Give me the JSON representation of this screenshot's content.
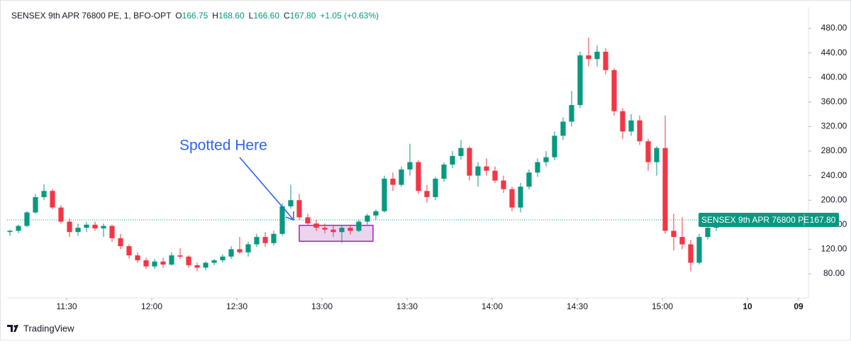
{
  "chart_data": {
    "type": "candlestick",
    "legend": {
      "symbol": "SENSEX 9th APR 76800 PE, 1, BFO-OPT",
      "items": [
        {
          "key": "O",
          "text": "166.75"
        },
        {
          "key": "H",
          "text": "168.60"
        },
        {
          "key": "L",
          "text": "166.60"
        },
        {
          "key": "C",
          "text": "167.80"
        }
      ],
      "change": "+1.05 (+0.63%)"
    },
    "x": [
      670,
      673,
      676,
      679,
      682,
      685,
      688,
      691,
      694,
      697,
      700,
      703,
      706,
      709,
      712,
      715,
      718,
      721,
      724,
      727,
      730,
      733,
      736,
      739,
      742,
      745,
      748,
      751,
      754,
      757,
      760,
      763,
      766,
      769,
      772,
      775,
      778,
      781,
      784,
      787,
      790,
      793,
      796,
      799,
      802,
      805,
      808,
      811,
      814,
      817,
      820,
      823,
      826,
      829,
      832,
      835,
      838,
      841,
      844,
      847,
      850,
      853,
      856,
      859,
      862,
      865,
      868,
      871,
      874,
      877,
      880,
      883,
      886,
      889,
      892,
      895,
      898,
      901,
      904,
      907,
      910,
      913,
      916,
      919,
      922
    ],
    "open": [
      148,
      150,
      158,
      180,
      205,
      215,
      188,
      165,
      148,
      155,
      160,
      154,
      158,
      138,
      125,
      110,
      102,
      92,
      100,
      95,
      110,
      108,
      94,
      90,
      98,
      102,
      108,
      120,
      115,
      128,
      140,
      130,
      145,
      190,
      200,
      172,
      162,
      155,
      152,
      148,
      155,
      150,
      165,
      175,
      182,
      235,
      225,
      250,
      262,
      215,
      205,
      235,
      258,
      272,
      285,
      240,
      255,
      248,
      232,
      218,
      188,
      222,
      245,
      262,
      270,
      305,
      328,
      355,
      436,
      430,
      442,
      412,
      345,
      312,
      330,
      296,
      262,
      285,
      150,
      140,
      128,
      98,
      140,
      155,
      166.75
    ],
    "high": [
      152,
      160,
      182,
      210,
      226,
      218,
      192,
      170,
      162,
      164,
      165,
      162,
      160,
      145,
      128,
      115,
      106,
      104,
      106,
      115,
      122,
      110,
      98,
      100,
      104,
      112,
      125,
      140,
      132,
      145,
      148,
      150,
      195,
      225,
      210,
      178,
      168,
      162,
      160,
      158,
      160,
      168,
      178,
      185,
      240,
      245,
      255,
      292,
      265,
      225,
      238,
      262,
      280,
      298,
      288,
      262,
      268,
      255,
      240,
      222,
      228,
      250,
      268,
      280,
      312,
      335,
      378,
      442,
      465,
      452,
      448,
      415,
      350,
      340,
      338,
      300,
      288,
      338,
      178,
      172,
      135,
      145,
      160,
      166,
      168.6
    ],
    "low": [
      142,
      146,
      156,
      178,
      200,
      185,
      162,
      140,
      142,
      148,
      150,
      140,
      132,
      120,
      105,
      98,
      88,
      88,
      90,
      93,
      104,
      90,
      84,
      86,
      94,
      98,
      104,
      112,
      108,
      124,
      124,
      126,
      142,
      186,
      168,
      158,
      150,
      146,
      140,
      130,
      144,
      148,
      160,
      168,
      180,
      215,
      222,
      240,
      210,
      196,
      200,
      230,
      252,
      266,
      232,
      222,
      240,
      228,
      212,
      182,
      180,
      218,
      238,
      255,
      265,
      298,
      320,
      350,
      418,
      418,
      405,
      338,
      300,
      305,
      290,
      248,
      240,
      145,
      118,
      120,
      84,
      95,
      136,
      150,
      166.6
    ],
    "close": [
      150,
      158,
      180,
      205,
      215,
      188,
      165,
      148,
      155,
      160,
      154,
      158,
      138,
      125,
      110,
      102,
      92,
      100,
      95,
      110,
      108,
      94,
      90,
      98,
      102,
      108,
      120,
      115,
      128,
      140,
      130,
      145,
      190,
      200,
      172,
      162,
      155,
      152,
      148,
      155,
      150,
      165,
      175,
      182,
      235,
      225,
      250,
      262,
      215,
      205,
      235,
      258,
      272,
      285,
      240,
      255,
      248,
      232,
      218,
      188,
      222,
      245,
      262,
      270,
      305,
      328,
      355,
      436,
      430,
      442,
      412,
      345,
      312,
      330,
      296,
      262,
      285,
      150,
      140,
      128,
      98,
      140,
      155,
      163,
      167.8
    ],
    "up_color": "#089981",
    "down_color": "#f23645",
    "xlim": [
      669,
      951.5
    ],
    "xticks": [
      {
        "value": 690,
        "label": "11:30"
      },
      {
        "value": 720,
        "label": "12:00"
      },
      {
        "value": 750,
        "label": "12:30"
      },
      {
        "value": 780,
        "label": "13:00"
      },
      {
        "value": 810,
        "label": "13:30"
      },
      {
        "value": 840,
        "label": "14:00"
      },
      {
        "value": 870,
        "label": "14:30"
      },
      {
        "value": 900,
        "label": "15:00"
      },
      {
        "value": 930,
        "label": "10"
      },
      {
        "value": 948,
        "label": "09"
      }
    ],
    "ylim": [
      40.7,
      514.7
    ],
    "yticks": [
      {
        "value": 80,
        "label": "80.00"
      },
      {
        "value": 120,
        "label": "120.00"
      },
      {
        "value": 160,
        "label": "160.00"
      },
      {
        "value": 200,
        "label": "200.00"
      },
      {
        "value": 240,
        "label": "240.00"
      },
      {
        "value": 280,
        "label": "280.00"
      },
      {
        "value": 320,
        "label": "320.00"
      },
      {
        "value": 360,
        "label": "360.00"
      },
      {
        "value": 400,
        "label": "400.00"
      },
      {
        "value": 440,
        "label": "440.00"
      },
      {
        "value": 480,
        "label": "480.00"
      }
    ],
    "price_tag": {
      "name": "SENSEX 9th APR 76800 PE",
      "value": 167.8,
      "label": "167.80"
    },
    "annotation": "Spotted Here",
    "highlight": {
      "x": [
        772,
        798
      ],
      "y": [
        133,
        159
      ]
    },
    "brand": "TradingView"
  }
}
